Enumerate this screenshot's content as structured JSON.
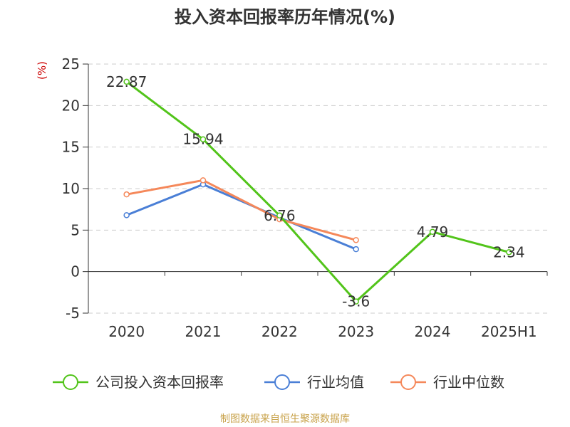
{
  "chart_data": {
    "type": "line",
    "title": "投入资本回报率历年情况(%)",
    "ylabel": "(%)",
    "xlabel": "",
    "categories": [
      "2020",
      "2021",
      "2022",
      "2023",
      "2024",
      "2025H1"
    ],
    "ylim": [
      -5,
      25
    ],
    "yticks": [
      -5,
      0,
      5,
      10,
      15,
      20,
      25
    ],
    "grid": true,
    "legend_position": "bottom",
    "series": [
      {
        "name": "公司投入资本回报率",
        "color": "#52c41a",
        "values": [
          22.87,
          15.94,
          6.76,
          -3.6,
          4.79,
          2.34
        ],
        "labels": [
          "22.87",
          "15.94",
          "6.76",
          "-3.6",
          "4.79",
          "2.34"
        ]
      },
      {
        "name": "行业均值",
        "color": "#4a7fd6",
        "values": [
          6.8,
          10.5,
          6.5,
          2.7,
          null,
          null
        ]
      },
      {
        "name": "行业中位数",
        "color": "#f5885a",
        "values": [
          9.3,
          11.0,
          6.3,
          3.8,
          null,
          null
        ]
      }
    ]
  },
  "source": "制图数据来自恒生聚源数据库"
}
